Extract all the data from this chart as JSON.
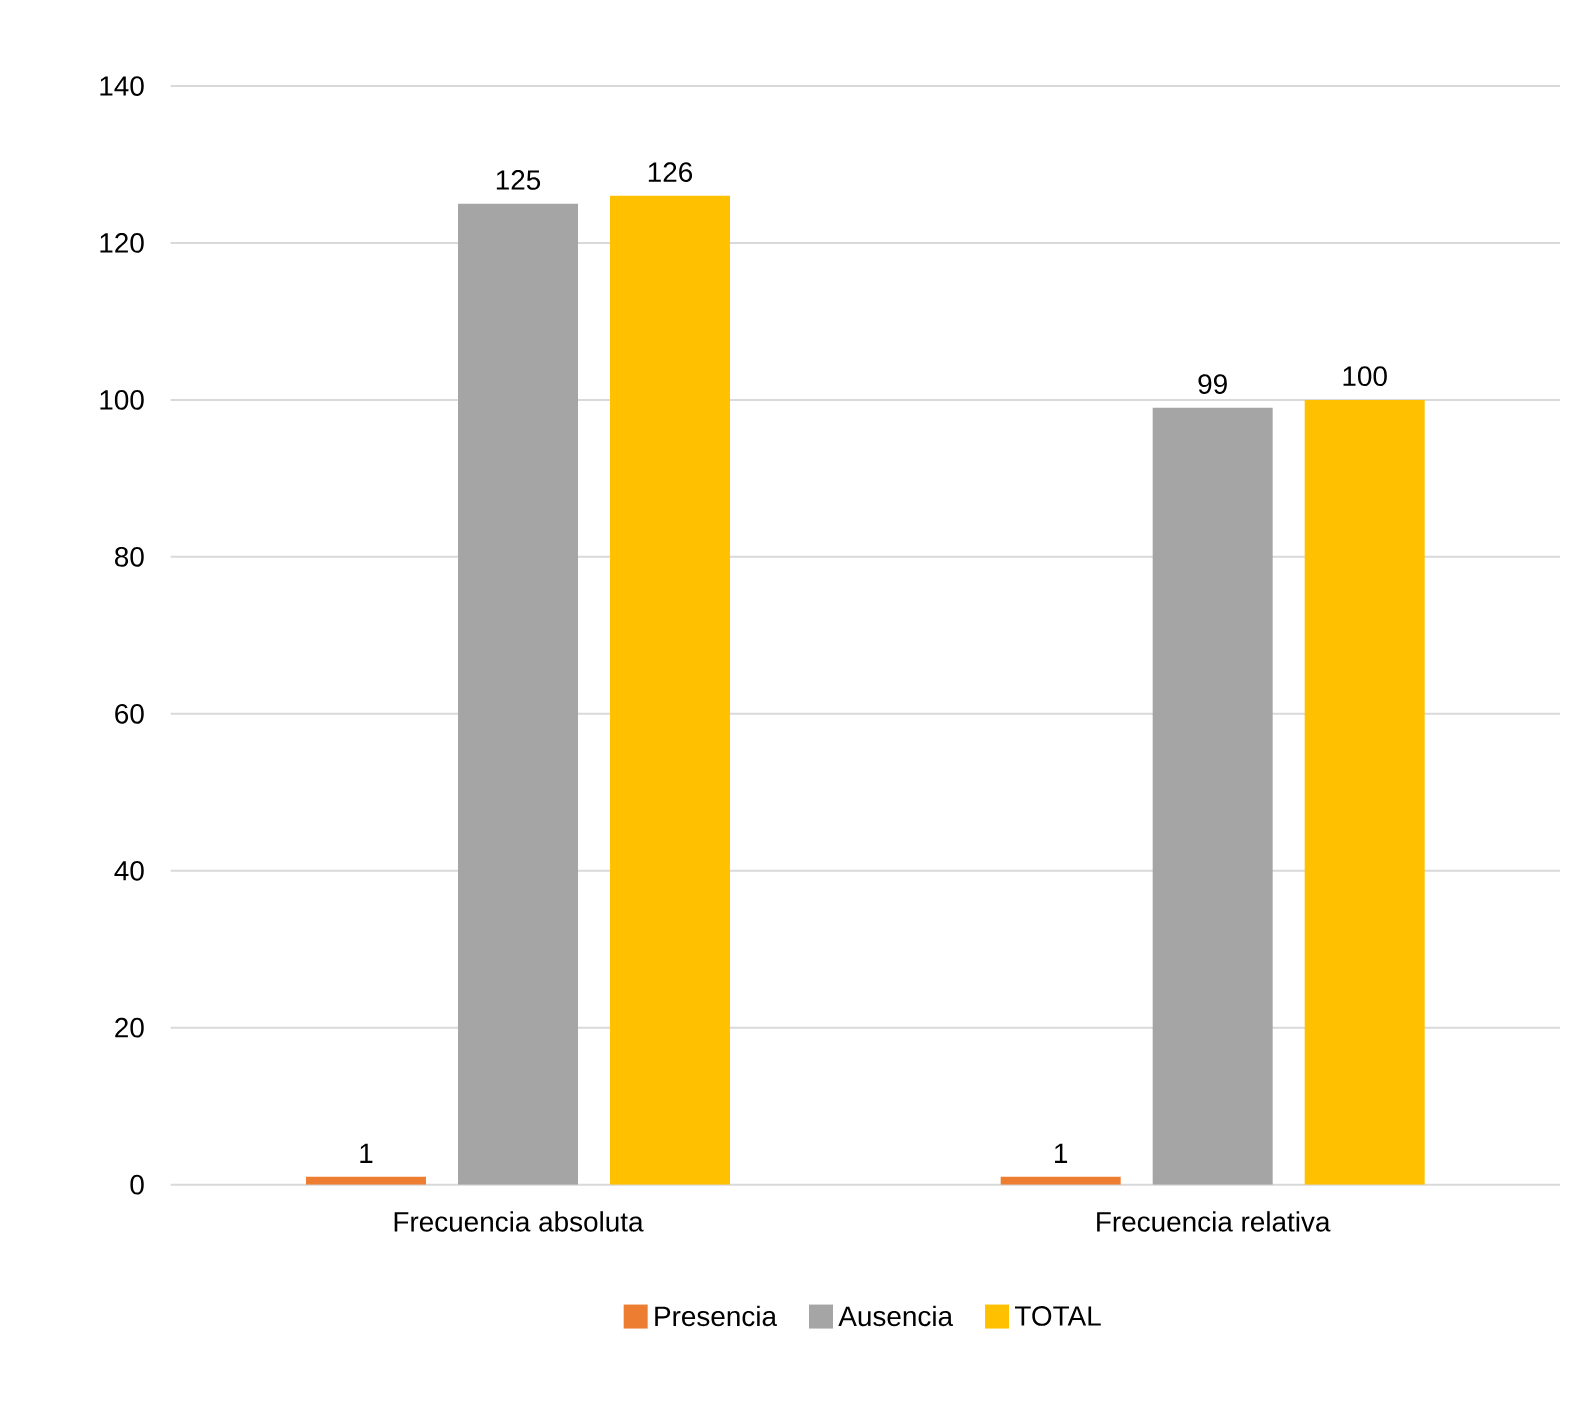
{
  "chart_data": {
    "type": "bar",
    "categories": [
      "Frecuencia absoluta",
      "Frecuencia relativa"
    ],
    "series": [
      {
        "name": "Presencia",
        "color": "#ed7d31",
        "values": [
          1,
          1
        ]
      },
      {
        "name": "Ausencia",
        "color": "#a5a5a5",
        "values": [
          125,
          99
        ]
      },
      {
        "name": "TOTAL",
        "color": "#ffc000",
        "values": [
          126,
          100
        ]
      }
    ],
    "ylim": [
      0,
      140
    ],
    "yticks": [
      0,
      20,
      40,
      60,
      80,
      100,
      120,
      140
    ],
    "grid": "y",
    "legend": "bottom",
    "data_labels": true
  }
}
